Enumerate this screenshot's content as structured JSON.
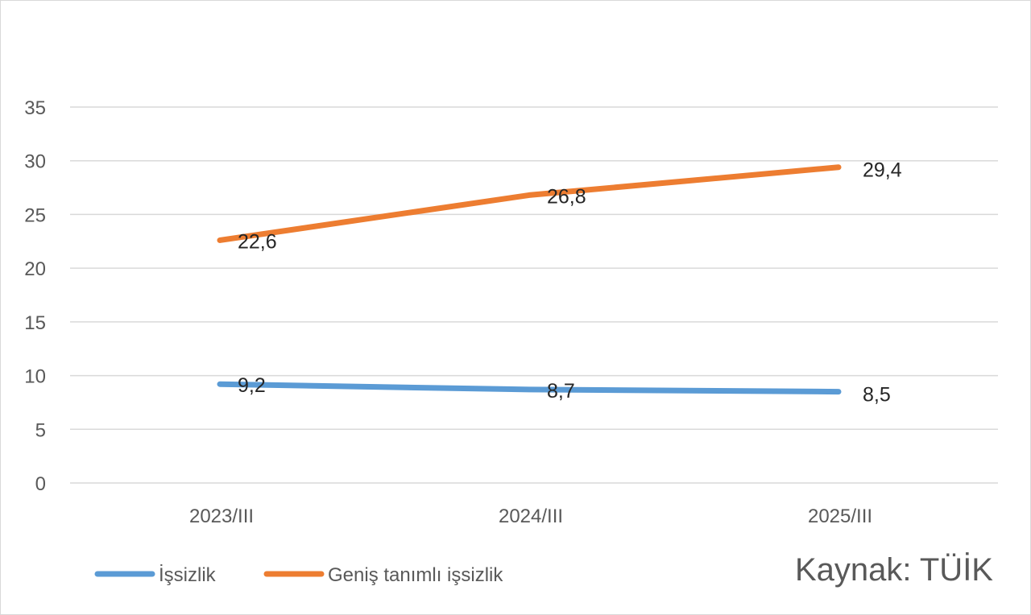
{
  "chart_data": {
    "type": "line",
    "categories": [
      "2023/III",
      "2024/III",
      "2025/III"
    ],
    "series": [
      {
        "name": "İşsizlik",
        "values": [
          9.2,
          8.7,
          8.5
        ],
        "labels": [
          "9,2",
          "8,7",
          "8,5"
        ],
        "color": "#5b9bd5"
      },
      {
        "name": "Geniş tanımlı işsizlik",
        "values": [
          22.6,
          26.8,
          29.4
        ],
        "labels": [
          "22,6",
          "26,8",
          "29,4"
        ],
        "color": "#ed7d31"
      }
    ],
    "ylim": [
      0,
      35
    ],
    "yticks": [
      0,
      5,
      10,
      15,
      20,
      25,
      30,
      35
    ],
    "grid": true,
    "legend": "bottom-left",
    "gridline_color": "#d9d9d9"
  },
  "source_note": "Kaynak: TÜİK"
}
